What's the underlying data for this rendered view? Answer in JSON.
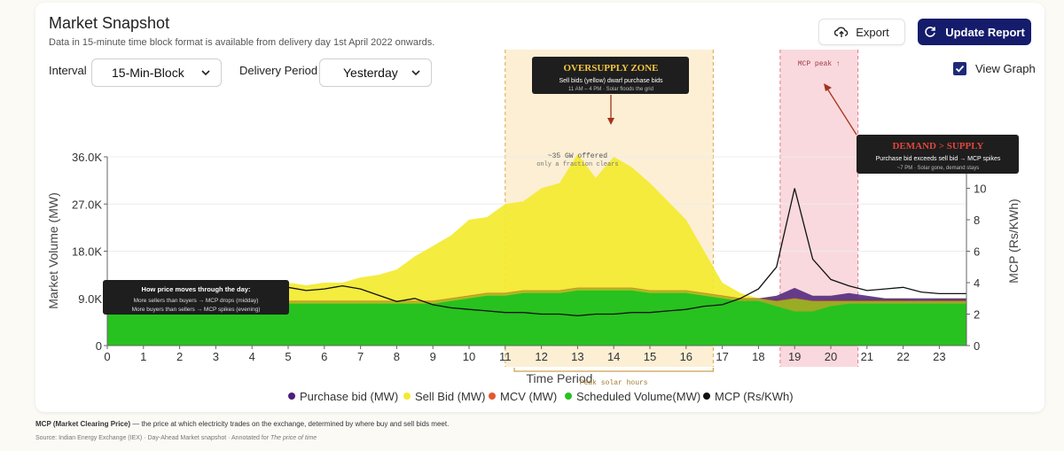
{
  "header": {
    "title": "Market Snapshot",
    "subtitle": "Data in 15-minute time block format is available from delivery day 1st April 2022 onwards."
  },
  "controls": {
    "interval_label": "Interval",
    "interval_value": "15-Min-Block",
    "delivery_label": "Delivery Period",
    "delivery_value": "Yesterday",
    "export_label": "Export",
    "update_label": "Update Report",
    "view_graph_label": "View Graph",
    "view_graph_checked": true
  },
  "colors": {
    "purchase": "#4b1f7a",
    "sell": "#f3ea2f",
    "mcv": "#e4572e",
    "scheduled": "#27c21f",
    "mcp": "#111111",
    "button_primary": "#141c6b"
  },
  "chart_data": {
    "type": "area",
    "x": [
      0,
      0.5,
      1,
      1.5,
      2,
      2.5,
      3,
      3.5,
      4,
      4.5,
      5,
      5.5,
      6,
      6.5,
      7,
      7.5,
      8,
      8.5,
      9,
      9.5,
      10,
      10.5,
      11,
      11.5,
      12,
      12.5,
      13,
      13.5,
      14,
      14.5,
      15,
      15.5,
      16,
      16.5,
      17,
      17.5,
      18,
      18.5,
      19,
      19.5,
      20,
      20.5,
      21,
      21.5,
      22,
      22.5,
      23,
      23.75
    ],
    "xticks": [
      0,
      1,
      2,
      3,
      4,
      5,
      6,
      7,
      8,
      9,
      10,
      11,
      12,
      13,
      14,
      15,
      16,
      17,
      18,
      19,
      20,
      21,
      22,
      23
    ],
    "xlabel": "Time Period",
    "ylabel": "Market Volume (MW)",
    "ylabel_right": "MCP (Rs/KWh)",
    "ylim": [
      0,
      36000
    ],
    "yticks_labels": [
      "0",
      "9.0K",
      "18.0K",
      "27.0K",
      "36.0K"
    ],
    "ylim_right": [
      0,
      12
    ],
    "yticks_right": [
      "0",
      "2",
      "4",
      "6",
      "8",
      "10"
    ],
    "series": [
      {
        "name": "Purchase bid (MW)",
        "key": "purchase",
        "values": [
          8000,
          8000,
          8000,
          8000,
          8000,
          8000,
          8000,
          8000,
          8000,
          8000,
          8000,
          8000,
          8000,
          8000,
          8000,
          8000,
          8000,
          8000,
          8000,
          8000,
          8000,
          8000,
          8000,
          8000,
          8000,
          8000,
          8000,
          8000,
          8000,
          8000,
          8000,
          8000,
          8000,
          8000,
          8000,
          9000,
          9000,
          9500,
          11000,
          9500,
          9500,
          10000,
          9500,
          9000,
          9000,
          9000,
          9000,
          9000
        ]
      },
      {
        "name": "Sell Bid (MW)",
        "key": "sell",
        "values": [
          11000,
          12000,
          12500,
          11000,
          11500,
          12000,
          12500,
          11500,
          12000,
          11000,
          12000,
          11500,
          12000,
          12000,
          13000,
          13500,
          14500,
          17000,
          19000,
          21000,
          24000,
          24500,
          27000,
          27500,
          30000,
          31000,
          36500,
          32000,
          36000,
          34000,
          31000,
          27500,
          24000,
          18000,
          12000,
          10000,
          9000,
          9000,
          9000,
          8500,
          9000,
          9000,
          9000,
          9000,
          9000,
          8500,
          9000,
          9000
        ]
      },
      {
        "name": "MCV (MW)",
        "key": "mcv",
        "values": [
          8500,
          8500,
          8500,
          8500,
          8500,
          8500,
          8500,
          8500,
          8500,
          8500,
          8500,
          8500,
          8500,
          8500,
          8500,
          8500,
          8500,
          8500,
          8500,
          9000,
          9500,
          10000,
          10000,
          10500,
          10500,
          10500,
          11000,
          11000,
          11000,
          11000,
          10500,
          10500,
          10500,
          10000,
          9500,
          9000,
          9000,
          8500,
          9000,
          8500,
          8500,
          8500,
          8500,
          8500,
          8500,
          8500,
          8500,
          8500
        ]
      },
      {
        "name": "Scheduled Volume(MW)",
        "key": "scheduled",
        "values": [
          8000,
          8000,
          8000,
          8000,
          8000,
          8000,
          8000,
          8000,
          8000,
          8000,
          8000,
          8000,
          8000,
          8000,
          8000,
          8000,
          8000,
          8000,
          8000,
          8500,
          9000,
          9500,
          9500,
          10000,
          10000,
          10000,
          10500,
          10500,
          10500,
          10500,
          10000,
          10000,
          10000,
          9500,
          9000,
          8500,
          8500,
          7500,
          6500,
          6500,
          7500,
          8000,
          8000,
          8000,
          8000,
          8000,
          8000,
          8000
        ]
      },
      {
        "name": "MCP (Rs/KWh)",
        "key": "mcp",
        "values": [
          3.8,
          3.7,
          3.8,
          3.6,
          3.7,
          3.8,
          3.6,
          3.7,
          3.5,
          3.6,
          3.7,
          3.5,
          3.6,
          3.8,
          3.6,
          3.2,
          2.8,
          3.0,
          2.6,
          2.4,
          2.3,
          2.2,
          2.1,
          2.1,
          2.0,
          2.0,
          1.9,
          2.0,
          2.0,
          2.1,
          2.1,
          2.2,
          2.3,
          2.5,
          2.6,
          3.0,
          3.6,
          5.0,
          10.0,
          5.5,
          4.2,
          3.8,
          3.5,
          3.6,
          3.7,
          3.4,
          3.3,
          3.3
        ]
      }
    ],
    "legend_position": "bottom-center",
    "annotations": {
      "oversupply_title": "OVERSUPPLY ZONE",
      "oversupply_line1": "Sell bids (yellow) dwarf purchase bids",
      "oversupply_line2": "11 AM – 4 PM · Solar floods the grid",
      "offered_line1": "~35 GW offered",
      "offered_line2": "only a fraction clears",
      "mcp_peak": "MCP peak ↑",
      "demand_title": "DEMAND > SUPPLY",
      "demand_line1": "Purchase bid exceeds sell bid → MCP spikes",
      "demand_line2": "~7 PM · Solar gone, demand stays",
      "price_title": "How price moves through the day:",
      "price_line1": "More sellers than buyers → MCP drops (midday)",
      "price_line2": "More buyers than sellers → MCP spikes (evening)",
      "peak_solar": "Peak solar hours"
    }
  },
  "footer": {
    "mcp_term": "MCP (Market Clearing Price)",
    "mcp_def": " — the price at which electricity trades on the exchange, determined by where buy and sell bids meet.",
    "source_prefix": "Source: Indian Energy Exchange (IEX) · Day-Ahead Market snapshot · Annotated for ",
    "source_title": "The price of time"
  }
}
